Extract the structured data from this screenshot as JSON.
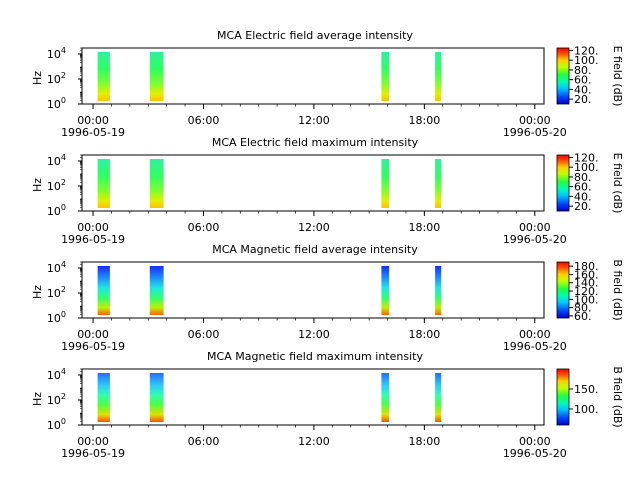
{
  "chart_data": [
    {
      "type": "heatmap",
      "title": "MCA  Electric field average intensity",
      "ylabel": "Hz",
      "colorbar_label": "E field (dB)",
      "colorbar_ticks": [
        "20.",
        "40.",
        "60.",
        "80.",
        "100.",
        "120."
      ],
      "colorbar_range": [
        10,
        125
      ],
      "ylim": [
        1,
        30000
      ],
      "y_scale": "log",
      "y_ticks": [
        {
          "base": "10",
          "exp": "0"
        },
        {
          "base": "10",
          "exp": "2"
        },
        {
          "base": "10",
          "exp": "4"
        }
      ],
      "x_ticks": [
        "00:00",
        "06:00",
        "12:00",
        "18:00",
        "00:00"
      ],
      "x_tick_hours": [
        0,
        6,
        12,
        18,
        24
      ],
      "x_range_hours": [
        -0.6,
        24.5
      ],
      "date_left": "1996-05-19",
      "date_right": "1996-05-20",
      "segments": [
        {
          "start": "00:15",
          "end": "00:55"
        },
        {
          "start": "03:05",
          "end": "03:50"
        },
        {
          "start": "15:40",
          "end": "16:05"
        },
        {
          "start": "18:35",
          "end": "18:55"
        }
      ]
    },
    {
      "type": "heatmap",
      "title": "MCA  Electric field maximum intensity",
      "ylabel": "Hz",
      "colorbar_label": "E field (dB)",
      "colorbar_ticks": [
        "20.",
        "40.",
        "60.",
        "80.",
        "100.",
        "120."
      ],
      "colorbar_range": [
        10,
        125
      ],
      "ylim": [
        1,
        30000
      ],
      "y_scale": "log",
      "y_ticks": [
        {
          "base": "10",
          "exp": "0"
        },
        {
          "base": "10",
          "exp": "2"
        },
        {
          "base": "10",
          "exp": "4"
        }
      ],
      "x_ticks": [
        "00:00",
        "06:00",
        "12:00",
        "18:00",
        "00:00"
      ],
      "x_tick_hours": [
        0,
        6,
        12,
        18,
        24
      ],
      "x_range_hours": [
        -0.6,
        24.5
      ],
      "date_left": "1996-05-19",
      "date_right": "1996-05-20",
      "segments": [
        {
          "start": "00:15",
          "end": "00:55"
        },
        {
          "start": "03:05",
          "end": "03:50"
        },
        {
          "start": "15:40",
          "end": "16:05"
        },
        {
          "start": "18:35",
          "end": "18:55"
        }
      ]
    },
    {
      "type": "heatmap",
      "title": "MCA  Magnetic field average intensity",
      "ylabel": "Hz",
      "colorbar_label": "B field (dB)",
      "colorbar_ticks": [
        "60.",
        "80.",
        "100.",
        "120.",
        "140.",
        "160.",
        "180."
      ],
      "colorbar_range": [
        55,
        190
      ],
      "ylim": [
        1,
        30000
      ],
      "y_scale": "log",
      "y_ticks": [
        {
          "base": "10",
          "exp": "0"
        },
        {
          "base": "10",
          "exp": "2"
        },
        {
          "base": "10",
          "exp": "4"
        }
      ],
      "x_ticks": [
        "00:00",
        "06:00",
        "12:00",
        "18:00",
        "00:00"
      ],
      "x_tick_hours": [
        0,
        6,
        12,
        18,
        24
      ],
      "x_range_hours": [
        -0.6,
        24.5
      ],
      "date_left": "1996-05-19",
      "date_right": "1996-05-20",
      "segments": [
        {
          "start": "00:15",
          "end": "00:55"
        },
        {
          "start": "03:05",
          "end": "03:50"
        },
        {
          "start": "15:40",
          "end": "16:05"
        },
        {
          "start": "18:35",
          "end": "18:55"
        }
      ]
    },
    {
      "type": "heatmap",
      "title": "MCA  Magnetic field maximum intensity",
      "ylabel": "Hz",
      "colorbar_label": "B field (dB)",
      "colorbar_ticks": [
        "100.",
        "150."
      ],
      "colorbar_range": [
        60,
        200
      ],
      "ylim": [
        1,
        30000
      ],
      "y_scale": "log",
      "y_ticks": [
        {
          "base": "10",
          "exp": "0"
        },
        {
          "base": "10",
          "exp": "2"
        },
        {
          "base": "10",
          "exp": "4"
        }
      ],
      "x_ticks": [
        "00:00",
        "06:00",
        "12:00",
        "18:00",
        "00:00"
      ],
      "x_tick_hours": [
        0,
        6,
        12,
        18,
        24
      ],
      "x_range_hours": [
        -0.6,
        24.5
      ],
      "date_left": "1996-05-19",
      "date_right": "1996-05-20",
      "segments": [
        {
          "start": "00:15",
          "end": "00:55"
        },
        {
          "start": "03:05",
          "end": "03:50"
        },
        {
          "start": "15:40",
          "end": "16:05"
        },
        {
          "start": "18:35",
          "end": "18:55"
        }
      ]
    }
  ]
}
